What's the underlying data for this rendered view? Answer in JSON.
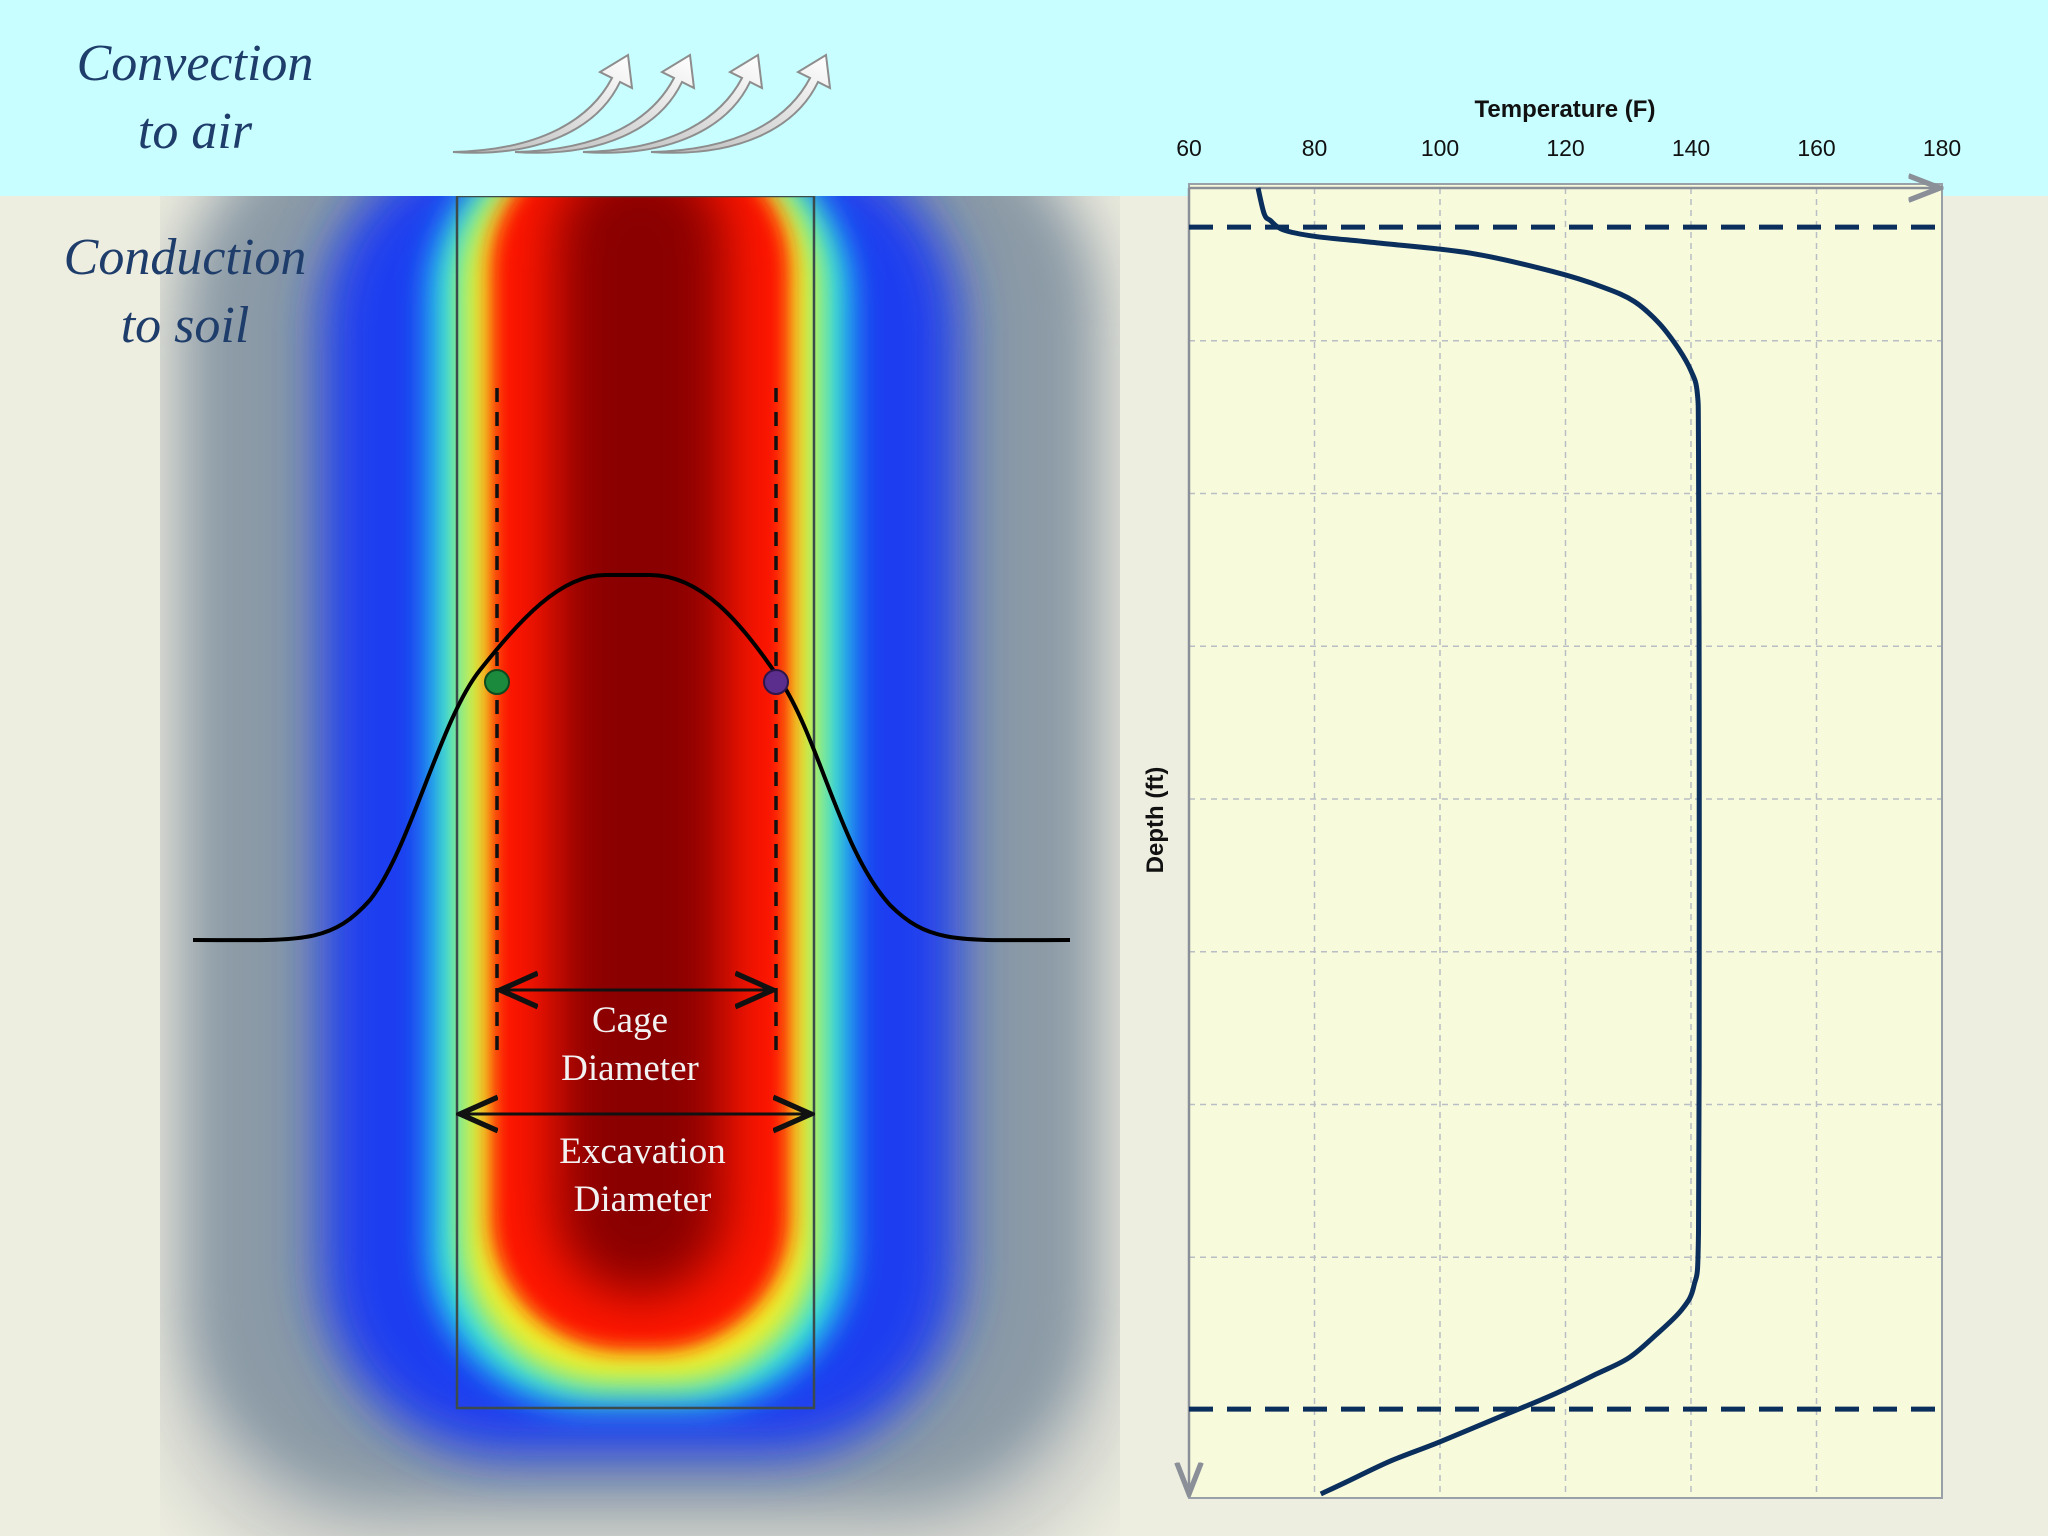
{
  "diagram": {
    "convection_label_line1": "Convection",
    "convection_label_line2": "to air",
    "conduction_label_line1": "Conduction",
    "conduction_label_line2": "to soil",
    "cage_label_line1": "Cage",
    "cage_label_line2": "Diameter",
    "excavation_label_line1": "Excavation",
    "excavation_label_line2": "Diameter",
    "colors": {
      "sky": "#c8feff",
      "soil": "#eeeee0",
      "label_text": "#1f3d6b",
      "hot_core": "#7a0000",
      "cold_ring": "#1f3df0",
      "cage_marker_left": "#1c8a3c",
      "cage_marker_right": "#5b2d8c"
    }
  },
  "chart_data": {
    "type": "line",
    "xlabel": "Temperature (F)",
    "ylabel": "Depth (ft)",
    "xlim": [
      60,
      180
    ],
    "xticks": [
      60,
      80,
      100,
      120,
      140,
      160,
      180
    ],
    "x_axis_position": "top",
    "y_axis_direction": "down",
    "grid": true,
    "depth_fraction_note_free": true,
    "series": [
      {
        "values": [
          [
            71,
            0.0
          ],
          [
            72,
            0.02
          ],
          [
            73,
            0.025
          ],
          [
            75,
            0.032
          ],
          [
            80,
            0.037
          ],
          [
            90,
            0.042
          ],
          [
            105,
            0.05
          ],
          [
            118,
            0.064
          ],
          [
            126,
            0.076
          ],
          [
            131,
            0.087
          ],
          [
            135,
            0.104
          ],
          [
            138,
            0.123
          ],
          [
            140,
            0.14
          ],
          [
            141,
            0.157
          ],
          [
            141.2,
            0.2
          ],
          [
            141.3,
            0.4
          ],
          [
            141.3,
            0.6
          ],
          [
            141.2,
            0.8
          ],
          [
            140.5,
            0.84
          ],
          [
            138.5,
            0.859
          ],
          [
            134,
            0.88
          ],
          [
            130,
            0.896
          ],
          [
            125,
            0.908
          ],
          [
            118,
            0.924
          ],
          [
            110,
            0.94
          ],
          [
            100,
            0.96
          ],
          [
            92,
            0.975
          ],
          [
            85,
            0.991
          ],
          [
            81,
            1.0
          ]
        ]
      }
    ],
    "reference_lines": [
      0.03,
      0.935
    ],
    "line_color": "#0b2f5c",
    "panel_color": "#f8fadc"
  }
}
